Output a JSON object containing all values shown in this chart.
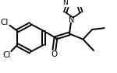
{
  "background_color": "#ffffff",
  "line_color": "#000000",
  "lw": 1.4,
  "figsize": [
    1.5,
    0.94
  ],
  "dpi": 100,
  "xlim": [
    0,
    150
  ],
  "ylim": [
    0,
    94
  ]
}
